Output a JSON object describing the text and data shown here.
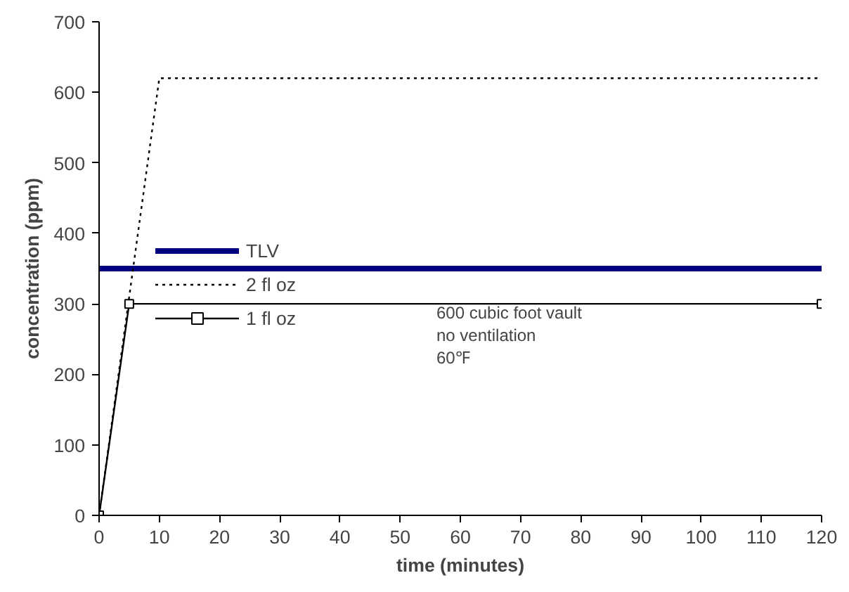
{
  "chart_data": {
    "type": "line",
    "xlabel": "time (minutes)",
    "ylabel": "concentration (ppm)",
    "xlim": [
      0,
      120
    ],
    "ylim": [
      0,
      700
    ],
    "xticks": [
      0,
      10,
      20,
      30,
      40,
      50,
      60,
      70,
      80,
      90,
      100,
      110,
      120
    ],
    "yticks": [
      0,
      100,
      200,
      300,
      400,
      500,
      600,
      700
    ],
    "grid": false,
    "legend": "left",
    "series": [
      {
        "name": "TLV",
        "color": "#000080",
        "x": [
          0,
          120
        ],
        "values": [
          350,
          350
        ],
        "line_style": "solid",
        "marker": "none"
      },
      {
        "name": "2 fl oz",
        "color": "#000000",
        "x": [
          0,
          10,
          120
        ],
        "values": [
          0,
          620,
          620
        ],
        "line_style": "dotted",
        "marker": "none"
      },
      {
        "name": "1 fl oz",
        "color": "#000000",
        "x": [
          0,
          5,
          120
        ],
        "values": [
          0,
          300,
          300
        ],
        "line_style": "solid",
        "marker": "square"
      }
    ],
    "annotations": [
      "600 cubic foot vault",
      "no ventilation",
      "60℉"
    ]
  }
}
